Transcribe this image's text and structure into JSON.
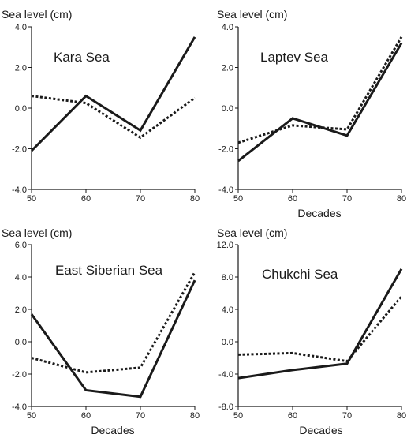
{
  "chart_data": [
    {
      "type": "line",
      "title": "Kara Sea",
      "ylabel": "Sea level (cm)",
      "xlabel": "",
      "x": [
        50,
        60,
        70,
        80
      ],
      "xlim": [
        50,
        80
      ],
      "ylim": [
        -4.0,
        4.0
      ],
      "xticks": [
        "50",
        "60",
        "70",
        "80"
      ],
      "yticks": [
        "4.0",
        "2.0",
        "0.0",
        "-2.0",
        "-4.0"
      ],
      "series": [
        {
          "values": [
            -2.1,
            0.6,
            -1.1,
            3.5
          ],
          "style": "solid"
        },
        {
          "values": [
            0.6,
            0.25,
            -1.45,
            0.5
          ],
          "style": "dotted"
        }
      ]
    },
    {
      "type": "line",
      "title": "Laptev Sea",
      "ylabel": "Sea level (cm)",
      "xlabel": "Decades",
      "x": [
        50,
        60,
        70,
        80
      ],
      "xlim": [
        50,
        80
      ],
      "ylim": [
        -4.0,
        4.0
      ],
      "xticks": [
        "50",
        "60",
        "70",
        "80"
      ],
      "yticks": [
        "4.0",
        "2.0",
        "0.0",
        "-2.0",
        "-4.0"
      ],
      "series": [
        {
          "values": [
            -2.6,
            -0.5,
            -1.35,
            3.2
          ],
          "style": "solid"
        },
        {
          "values": [
            -1.7,
            -0.85,
            -1.05,
            3.5
          ],
          "style": "dotted"
        }
      ]
    },
    {
      "type": "line",
      "title": "East Siberian Sea",
      "ylabel": "Sea level (cm)",
      "xlabel": "Decades",
      "x": [
        50,
        60,
        70,
        80
      ],
      "xlim": [
        50,
        80
      ],
      "ylim": [
        -4.0,
        6.0
      ],
      "xticks": [
        "50",
        "60",
        "70",
        "80"
      ],
      "yticks": [
        "6.0",
        "4.0",
        "2.0",
        "0.0",
        "-2.0",
        "-4.0"
      ],
      "series": [
        {
          "values": [
            1.7,
            -3.0,
            -3.4,
            3.8
          ],
          "style": "solid"
        },
        {
          "values": [
            -1.0,
            -1.9,
            -1.6,
            4.3
          ],
          "style": "dotted"
        }
      ]
    },
    {
      "type": "line",
      "title": "Chukchi Sea",
      "ylabel": "Sea level (cm)",
      "xlabel": "Decades",
      "x": [
        50,
        60,
        70,
        80
      ],
      "xlim": [
        50,
        80
      ],
      "ylim": [
        -8.0,
        12.0
      ],
      "xticks": [
        "50",
        "60",
        "70",
        "80"
      ],
      "yticks": [
        "12.0",
        "8.0",
        "4.0",
        "0.0",
        "-4.0",
        "-8.0"
      ],
      "series": [
        {
          "values": [
            -4.5,
            -3.5,
            -2.7,
            9.0
          ],
          "style": "solid"
        },
        {
          "values": [
            -1.6,
            -1.4,
            -2.4,
            5.6
          ],
          "style": "dotted"
        }
      ]
    }
  ]
}
